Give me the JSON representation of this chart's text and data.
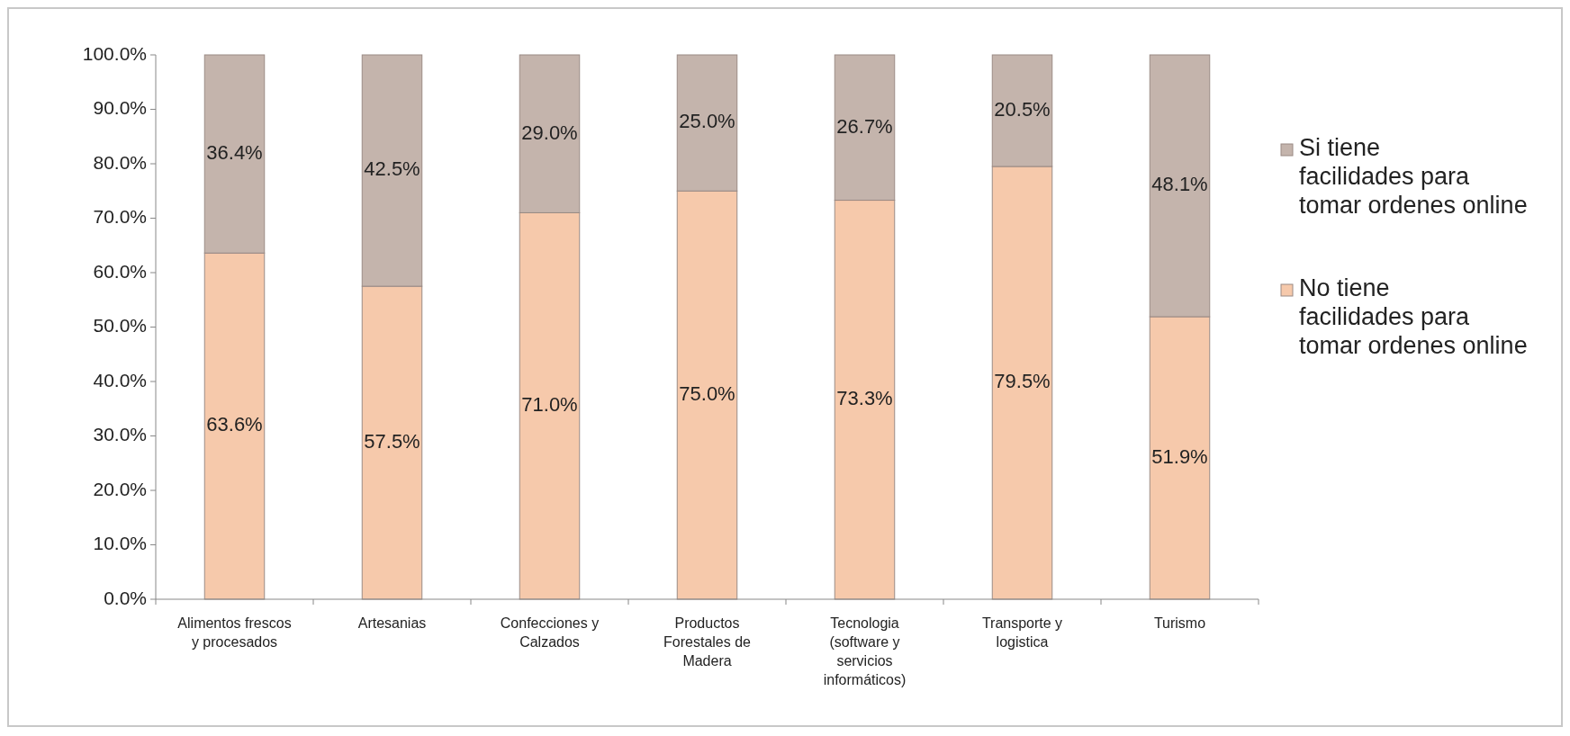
{
  "chart_data": {
    "type": "bar",
    "stacked": true,
    "categories": [
      "Alimentos frescos y procesados",
      "Artesanias",
      "Confecciones y Calzados",
      "Productos Forestales de Madera",
      "Tecnologia (software y servicios informáticos)",
      "Transporte y logistica",
      "Turismo"
    ],
    "series": [
      {
        "name": "No   tiene facilidades para tomar ordenes online",
        "color": "#f6c9ab",
        "values": [
          63.6,
          57.5,
          71.0,
          75.0,
          73.3,
          79.5,
          51.9
        ],
        "value_labels": [
          "63.6%",
          "57.5%",
          "71.0%",
          "75.0%",
          "73.3%",
          "79.5%",
          "51.9%"
        ]
      },
      {
        "name": "Si  tiene facilidades para tomar ordenes online",
        "color": "#c4b4ac",
        "values": [
          36.4,
          42.5,
          29.0,
          25.0,
          26.7,
          20.5,
          48.1
        ],
        "value_labels": [
          "36.4%",
          "42.5%",
          "29.0%",
          "25.0%",
          "26.7%",
          "20.5%",
          "48.1%"
        ]
      }
    ],
    "ylim": [
      0,
      100
    ],
    "yticks": [
      {
        "value": 0,
        "label": "0.0%"
      },
      {
        "value": 10,
        "label": "10.0%"
      },
      {
        "value": 20,
        "label": "20.0%"
      },
      {
        "value": 30,
        "label": "30.0%"
      },
      {
        "value": 40,
        "label": "40.0%"
      },
      {
        "value": 50,
        "label": "50.0%"
      },
      {
        "value": 60,
        "label": "60.0%"
      },
      {
        "value": 70,
        "label": "70.0%"
      },
      {
        "value": 80,
        "label": "80.0%"
      },
      {
        "value": 90,
        "label": "90.0%"
      },
      {
        "value": 100,
        "label": "100.0%"
      }
    ],
    "grid": false,
    "legend": "right"
  }
}
